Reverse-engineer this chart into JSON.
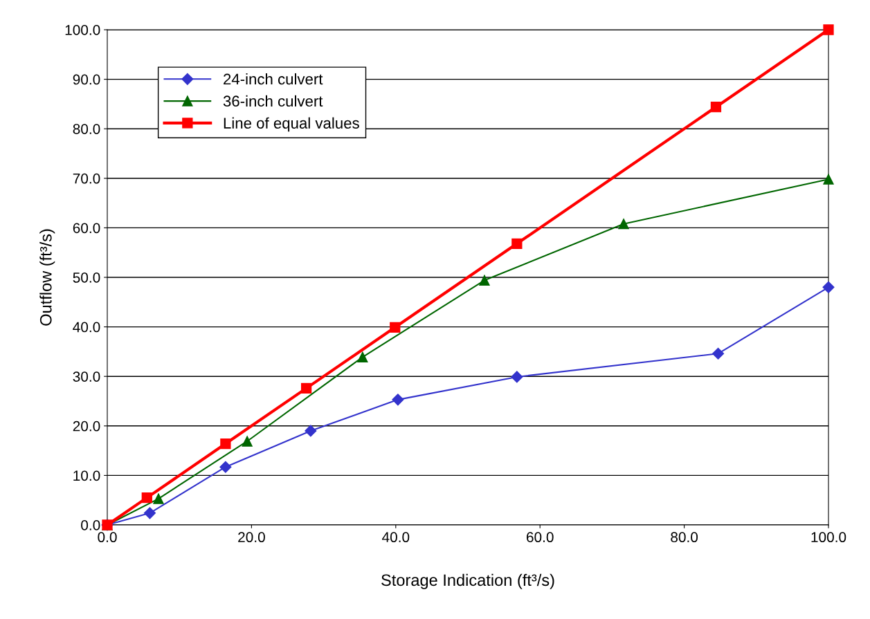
{
  "chart_data": {
    "type": "line",
    "xlabel": "Storage Indication (ft³/s)",
    "ylabel": "Outflow (ft³/s)",
    "xlim": [
      0,
      100
    ],
    "ylim": [
      0,
      100
    ],
    "xticks": [
      {
        "value": 0,
        "label": "0.0"
      },
      {
        "value": 20,
        "label": "20.0"
      },
      {
        "value": 40,
        "label": "40.0"
      },
      {
        "value": 60,
        "label": "60.0"
      },
      {
        "value": 80,
        "label": "80.0"
      },
      {
        "value": 100,
        "label": "100.0"
      }
    ],
    "yticks": [
      {
        "value": 0,
        "label": "0.0"
      },
      {
        "value": 10,
        "label": "10.0"
      },
      {
        "value": 20,
        "label": "20.0"
      },
      {
        "value": 30,
        "label": "30.0"
      },
      {
        "value": 40,
        "label": "40.0"
      },
      {
        "value": 50,
        "label": "50.0"
      },
      {
        "value": 60,
        "label": "60.0"
      },
      {
        "value": 70,
        "label": "70.0"
      },
      {
        "value": 80,
        "label": "80.0"
      },
      {
        "value": 90,
        "label": "90.0"
      },
      {
        "value": 100,
        "label": "100.0"
      }
    ],
    "grid": "y",
    "legend": "top left",
    "series": [
      {
        "name": "24-inch culvert",
        "color": "#3333cc",
        "marker": "diamond",
        "x": [
          0,
          5.9,
          16.4,
          28.2,
          40.3,
          56.8,
          84.7,
          100
        ],
        "values": [
          0,
          2.4,
          11.7,
          19.0,
          25.3,
          29.9,
          34.6,
          48.0
        ]
      },
      {
        "name": "36-inch culvert",
        "color": "#006600",
        "marker": "triangle",
        "x": [
          0,
          7.1,
          19.4,
          35.4,
          52.3,
          71.6,
          100
        ],
        "values": [
          0,
          5.3,
          16.9,
          33.9,
          49.4,
          60.8,
          69.8
        ]
      },
      {
        "name": "Line of equal values",
        "color": "#ff0000",
        "marker": "square",
        "x": [
          0,
          5.5,
          16.4,
          27.6,
          39.9,
          56.8,
          84.4,
          100
        ],
        "values": [
          0,
          5.5,
          16.4,
          27.6,
          39.9,
          56.8,
          84.4,
          100
        ]
      }
    ]
  }
}
